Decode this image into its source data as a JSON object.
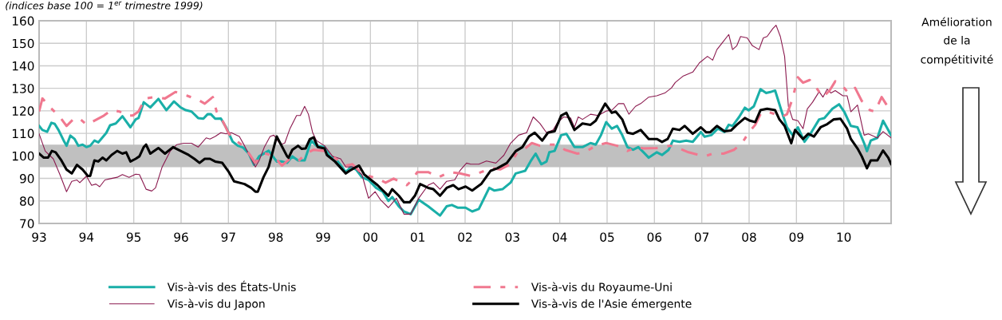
{
  "chart_data": {
    "type": "line",
    "subtitle": "(indices base 100 = 1$^{er}$ trimestre 1999)",
    "annotations": [
      "Amélioration\nde la\ncompétitivité"
    ],
    "xlim": [
      1993,
      2011
    ],
    "xticks": [
      {
        "value": 1993,
        "label": "93"
      },
      {
        "value": 1994,
        "label": "94"
      },
      {
        "value": 1995,
        "label": "95"
      },
      {
        "value": 1996,
        "label": "96"
      },
      {
        "value": 1997,
        "label": "97"
      },
      {
        "value": 1998,
        "label": "98"
      },
      {
        "value": 1999,
        "label": "99"
      },
      {
        "value": 2000,
        "label": "00"
      },
      {
        "value": 2001,
        "label": "01"
      },
      {
        "value": 2002,
        "label": "02"
      },
      {
        "value": 2003,
        "label": "03"
      },
      {
        "value": 2004,
        "label": "04"
      },
      {
        "value": 2005,
        "label": "05"
      },
      {
        "value": 2006,
        "label": "06"
      },
      {
        "value": 2007,
        "label": "07"
      },
      {
        "value": 2008,
        "label": "08"
      },
      {
        "value": 2009,
        "label": "09"
      },
      {
        "value": 2010,
        "label": "10"
      },
      {
        "value": 2011,
        "label": null
      }
    ],
    "ylim": [
      70,
      160
    ],
    "yticks": [
      70,
      80,
      90,
      100,
      110,
      120,
      130,
      140,
      150,
      160
    ],
    "grid": true,
    "legend": "bottom",
    "bands": [
      {
        "axis": "y",
        "from": 95,
        "to": 105,
        "color": "#c0c0c0"
      }
    ],
    "series": [
      {
        "name": "Vis-à-vis des États-Unis",
        "color": "#1aafa8",
        "line_style": "solid",
        "x": [
          1993.0,
          1993.07,
          1993.17,
          1993.26,
          1993.33,
          1993.41,
          1993.52,
          1993.58,
          1993.66,
          1993.75,
          1993.83,
          1993.92,
          1994.0,
          1994.08,
          1994.17,
          1994.25,
          1994.42,
          1994.5,
          1994.62,
          1994.76,
          1994.93,
          1995.04,
          1995.1,
          1995.21,
          1995.35,
          1995.52,
          1995.69,
          1995.85,
          1995.99,
          1996.1,
          1996.22,
          1996.36,
          1996.47,
          1996.56,
          1996.63,
          1996.72,
          1996.84,
          1996.95,
          1997.09,
          1997.2,
          1997.31,
          1997.43,
          1997.54,
          1997.65,
          1997.85,
          1998.02,
          1998.13,
          1998.24,
          1998.35,
          1998.47,
          1998.61,
          1998.75,
          1998.86,
          1999.03,
          1999.14,
          1999.31,
          1999.48,
          1999.59,
          1999.7,
          1999.82,
          1999.96,
          2000.12,
          2000.26,
          2000.38,
          2000.46,
          2000.6,
          2000.71,
          2000.85,
          2001.02,
          2001.22,
          2001.47,
          2001.61,
          2001.72,
          2001.84,
          2002.01,
          2002.15,
          2002.29,
          2002.51,
          2002.62,
          2002.79,
          2002.96,
          2003.07,
          2003.27,
          2003.38,
          2003.49,
          2003.61,
          2003.72,
          2003.78,
          2003.89,
          2004.03,
          2004.14,
          2004.31,
          2004.48,
          2004.65,
          2004.76,
          2004.87,
          2004.98,
          2005.1,
          2005.21,
          2005.32,
          2005.43,
          2005.55,
          2005.66,
          2005.77,
          2005.88,
          2006.05,
          2006.16,
          2006.3,
          2006.39,
          2006.53,
          2006.67,
          2006.81,
          2006.98,
          2007.06,
          2007.2,
          2007.34,
          2007.48,
          2007.57,
          2007.65,
          2007.79,
          2007.91,
          2007.99,
          2008.1,
          2008.24,
          2008.36,
          2008.47,
          2008.55,
          2008.69,
          2008.8,
          2008.92,
          2009.03,
          2009.17,
          2009.31,
          2009.48,
          2009.59,
          2009.76,
          2009.9,
          2010.01,
          2010.15,
          2010.29,
          2010.43,
          2010.49,
          2010.57,
          2010.71,
          2010.83,
          2011.0
        ],
        "values": [
          113.3,
          111.5,
          110.7,
          114.7,
          114.2,
          111.5,
          106.8,
          104.5,
          109,
          107.5,
          104.5,
          105,
          103.9,
          104.5,
          106.8,
          106,
          110.2,
          113.6,
          114.4,
          117.6,
          112.7,
          116.2,
          116.8,
          123.8,
          121.5,
          125.3,
          120.3,
          124.2,
          121.5,
          120.3,
          119.7,
          116.8,
          116.5,
          118.5,
          118.5,
          116.5,
          116.6,
          112.7,
          106.3,
          104.5,
          103.7,
          101,
          96.1,
          99.8,
          102.3,
          97.5,
          97.5,
          96.9,
          99.8,
          98,
          98,
          106.8,
          104.5,
          103.9,
          99.8,
          97.5,
          92.8,
          95.1,
          93.9,
          90.5,
          89.3,
          85.8,
          84.1,
          80,
          81.7,
          77.6,
          75.3,
          74.1,
          80.5,
          77.6,
          73.5,
          77.6,
          78.2,
          77,
          77,
          75.3,
          76.4,
          85.8,
          84.6,
          85.2,
          88.1,
          92.2,
          93.4,
          97.5,
          101,
          96.3,
          97.5,
          101.6,
          102.2,
          109.2,
          109.8,
          103.9,
          103.9,
          105.7,
          105,
          109.2,
          115,
          112.1,
          113.3,
          109.2,
          103.9,
          102.7,
          103.9,
          101.6,
          99.2,
          101.6,
          100.4,
          102.7,
          106.8,
          106.2,
          106.8,
          106.2,
          110.6,
          108.5,
          109.2,
          112.1,
          110.6,
          113.8,
          113.3,
          117.3,
          121.4,
          120.2,
          122,
          129.6,
          127.9,
          128.5,
          129,
          119.6,
          112.7,
          109.2,
          112.7,
          106.3,
          110.3,
          116.2,
          116.8,
          120.9,
          122.9,
          119.6,
          113.3,
          112.7,
          105.6,
          102.1,
          106.8,
          108,
          115.6,
          109.2
        ]
      },
      {
        "name": "Vis-à-vis du Japon",
        "color": "#8b1a4f",
        "line_style": "solid",
        "x": [
          1993.0,
          1993.13,
          1993.3,
          1993.44,
          1993.58,
          1993.69,
          1993.8,
          1993.86,
          1994.0,
          1994.11,
          1994.2,
          1994.28,
          1994.39,
          1994.51,
          1994.65,
          1994.76,
          1994.9,
          1995.04,
          1995.12,
          1995.26,
          1995.38,
          1995.46,
          1995.6,
          1995.77,
          1995.91,
          1996.05,
          1996.22,
          1996.36,
          1996.53,
          1996.61,
          1996.72,
          1996.84,
          1996.95,
          1997.06,
          1997.23,
          1997.34,
          1997.48,
          1997.57,
          1997.65,
          1997.76,
          1997.88,
          1997.96,
          1998.1,
          1998.19,
          1998.3,
          1998.44,
          1998.52,
          1998.61,
          1998.69,
          1998.78,
          1998.86,
          1999.03,
          1999.2,
          1999.37,
          1999.48,
          1999.65,
          1999.82,
          1999.96,
          2000.1,
          2000.21,
          2000.38,
          2000.55,
          2000.71,
          2000.85,
          2001.02,
          2001.22,
          2001.33,
          2001.47,
          2001.61,
          2001.78,
          2001.89,
          2002.03,
          2002.12,
          2002.29,
          2002.45,
          2002.65,
          2002.82,
          2002.96,
          2003.13,
          2003.3,
          2003.44,
          2003.58,
          2003.72,
          2003.86,
          2003.94,
          2004.08,
          2004.23,
          2004.31,
          2004.39,
          2004.48,
          2004.65,
          2004.81,
          2004.98,
          2005.1,
          2005.24,
          2005.35,
          2005.46,
          2005.6,
          2005.71,
          2005.88,
          2006.05,
          2006.22,
          2006.36,
          2006.44,
          2006.61,
          2006.81,
          2006.95,
          2007.12,
          2007.23,
          2007.32,
          2007.43,
          2007.57,
          2007.65,
          2007.74,
          2007.82,
          2007.96,
          2008.07,
          2008.21,
          2008.3,
          2008.38,
          2008.5,
          2008.57,
          2008.66,
          2008.75,
          2008.83,
          2008.92,
          2009.03,
          2009.14,
          2009.23,
          2009.34,
          2009.48,
          2009.56,
          2009.65,
          2009.73,
          2009.82,
          2009.98,
          2010.07,
          2010.15,
          2010.29,
          2010.43,
          2010.52,
          2010.71,
          2010.83,
          2011.0
        ],
        "values": [
          109.8,
          102.1,
          98.7,
          91.7,
          84.1,
          88.7,
          89.3,
          88.1,
          91,
          86.9,
          87.5,
          86.3,
          89.3,
          89.9,
          90.5,
          91.7,
          90.5,
          91.9,
          91.7,
          85.2,
          84.4,
          85.8,
          95.1,
          102.1,
          105,
          105.6,
          105.6,
          103.9,
          108,
          107.5,
          108.6,
          110.3,
          109.8,
          110.3,
          108.6,
          104.5,
          98.7,
          95.1,
          98,
          103.9,
          108.6,
          109.2,
          105,
          105.7,
          112.1,
          117.9,
          117.9,
          122,
          118.5,
          110.3,
          106.8,
          104.5,
          99.8,
          98.7,
          95.1,
          95.1,
          91.7,
          81.2,
          84.1,
          80.6,
          77,
          81.2,
          74.1,
          74.1,
          81.2,
          87,
          88.1,
          85.2,
          88.7,
          89.3,
          93.4,
          96.8,
          96.3,
          96.3,
          97.7,
          96.8,
          100.3,
          105.6,
          109.2,
          110.3,
          117.3,
          114.4,
          110.3,
          111.5,
          114.4,
          117.3,
          116.8,
          112.7,
          117.3,
          116.2,
          118.5,
          117.9,
          119.9,
          120.3,
          123.2,
          123.2,
          118.5,
          122,
          123.2,
          126.1,
          126.7,
          127.9,
          130.2,
          132.6,
          135.5,
          137.2,
          141.3,
          144.2,
          142.5,
          147.2,
          150.1,
          153.9,
          147.2,
          148.9,
          153,
          152.4,
          148.9,
          147.2,
          152.4,
          153,
          156.5,
          158,
          153,
          144.2,
          122,
          116.2,
          115.6,
          112.1,
          120.9,
          123.8,
          128.5,
          126.1,
          129.6,
          127.9,
          129,
          126.7,
          126.7,
          119.6,
          122.6,
          109.2,
          109.8,
          108,
          110.8,
          108
        ]
      },
      {
        "name": "Vis-à-vis du Royaume-Uni",
        "color": "#f0788f",
        "line_style": "dashed",
        "x": [
          1993.0,
          1993.07,
          1993.24,
          1993.44,
          1993.58,
          1993.75,
          1993.86,
          1994.0,
          1994.11,
          1994.37,
          1994.53,
          1994.7,
          1994.84,
          1994.98,
          1995.1,
          1995.24,
          1995.43,
          1995.66,
          1995.88,
          1996.13,
          1996.36,
          1996.5,
          1996.67,
          1996.75,
          1996.89,
          1997.01,
          1997.12,
          1997.34,
          1997.57,
          1997.69,
          1997.79,
          1997.96,
          1998.13,
          1998.3,
          1998.47,
          1998.63,
          1998.8,
          1999.03,
          1999.14,
          1999.31,
          1999.48,
          1999.62,
          1999.82,
          1999.96,
          2000.15,
          2000.32,
          2000.49,
          2000.77,
          2000.88,
          2000.99,
          2001.22,
          2001.44,
          2001.67,
          2001.89,
          2002.12,
          2002.34,
          2002.57,
          2002.74,
          2002.96,
          2003.1,
          2003.27,
          2003.41,
          2003.58,
          2003.75,
          2003.92,
          2004.11,
          2004.37,
          2004.53,
          2004.76,
          2004.98,
          2005.21,
          2005.43,
          2005.63,
          2005.77,
          2006.05,
          2006.33,
          2006.5,
          2006.72,
          2007.06,
          2007.23,
          2007.46,
          2007.68,
          2007.85,
          2007.99,
          2008.13,
          2008.24,
          2008.38,
          2008.55,
          2008.69,
          2008.8,
          2008.92,
          2009.03,
          2009.14,
          2009.28,
          2009.42,
          2009.56,
          2009.7,
          2009.82,
          2009.96,
          2010.1,
          2010.24,
          2010.38,
          2010.55,
          2010.66,
          2010.8,
          2010.94,
          2011.0
        ],
        "values": [
          119.7,
          125.5,
          121.4,
          117.3,
          113.3,
          116.8,
          116.5,
          113.9,
          115,
          117.9,
          120.3,
          119.7,
          117.9,
          117.9,
          119.7,
          125.5,
          126.1,
          125.5,
          128.4,
          126.7,
          124.9,
          123.2,
          126.1,
          119.7,
          115,
          109.8,
          107.5,
          103.9,
          96.9,
          100.4,
          101,
          99.8,
          95.7,
          98.7,
          97.5,
          101,
          102.7,
          102.2,
          101,
          98,
          95.7,
          96.3,
          92.2,
          91.1,
          89.9,
          88.1,
          89.9,
          87,
          89.3,
          92.8,
          92.8,
          90.5,
          92.8,
          92.2,
          91.1,
          92.8,
          94.5,
          94,
          96.3,
          101.5,
          103.3,
          105.7,
          104.5,
          105,
          105,
          102.7,
          101,
          101.6,
          104.5,
          105.7,
          104.5,
          102.2,
          103.9,
          103.3,
          103.5,
          104.5,
          103.5,
          101.6,
          99.8,
          101,
          101,
          102.7,
          105.6,
          110.3,
          113.8,
          118.5,
          119.7,
          118.5,
          117.3,
          118.5,
          125.5,
          134.9,
          132.5,
          133.7,
          130.2,
          126.1,
          129,
          133.1,
          131.4,
          127.9,
          130.2,
          124.4,
          120.3,
          119.7,
          126.1,
          121.5,
          121.5
        ]
      },
      {
        "name": "Vis-à-vis de l'Asie émergente",
        "color": "#000000",
        "line_style": "solid",
        "x": [
          1993.0,
          1993.1,
          1993.19,
          1993.27,
          1993.35,
          1993.47,
          1993.58,
          1993.69,
          1993.8,
          1993.92,
          1994.03,
          1994.08,
          1994.17,
          1994.25,
          1994.34,
          1994.42,
          1994.53,
          1994.65,
          1994.76,
          1994.84,
          1994.93,
          1995.04,
          1995.12,
          1995.21,
          1995.26,
          1995.35,
          1995.52,
          1995.66,
          1995.83,
          1995.99,
          1996.16,
          1996.28,
          1996.39,
          1996.5,
          1996.61,
          1996.72,
          1996.87,
          1997.01,
          1997.12,
          1997.34,
          1997.48,
          1997.57,
          1997.62,
          1997.74,
          1997.85,
          1998.02,
          1998.24,
          1998.27,
          1998.35,
          1998.47,
          1998.55,
          1998.63,
          1998.72,
          1998.8,
          1998.89,
          1999.03,
          1999.08,
          1999.25,
          1999.48,
          1999.56,
          1999.65,
          1999.76,
          1999.87,
          1999.98,
          2000.15,
          2000.38,
          2000.46,
          2000.6,
          2000.71,
          2000.83,
          2000.94,
          2001.05,
          2001.22,
          2001.33,
          2001.47,
          2001.61,
          2001.75,
          2001.86,
          2002.01,
          2002.15,
          2002.34,
          2002.54,
          2002.68,
          2002.88,
          2003.07,
          2003.21,
          2003.35,
          2003.47,
          2003.63,
          2003.75,
          2003.89,
          2004.03,
          2004.14,
          2004.31,
          2004.48,
          2004.65,
          2004.76,
          2004.96,
          2005.1,
          2005.18,
          2005.32,
          2005.43,
          2005.55,
          2005.71,
          2005.88,
          2006.05,
          2006.16,
          2006.28,
          2006.39,
          2006.53,
          2006.64,
          2006.81,
          2006.98,
          2007.09,
          2007.18,
          2007.32,
          2007.48,
          2007.62,
          2007.74,
          2007.91,
          2008.02,
          2008.13,
          2008.24,
          2008.38,
          2008.55,
          2008.64,
          2008.75,
          2008.89,
          2008.97,
          2009.14,
          2009.25,
          2009.37,
          2009.51,
          2009.65,
          2009.79,
          2009.93,
          2010.07,
          2010.15,
          2010.29,
          2010.38,
          2010.49,
          2010.57,
          2010.71,
          2010.83,
          2010.94,
          2011.0
        ],
        "values": [
          101,
          99.2,
          99.2,
          102.2,
          101.6,
          98,
          93.9,
          92.2,
          96,
          93.9,
          91.1,
          91.1,
          98,
          97.5,
          99.2,
          98,
          100.4,
          102.2,
          101,
          101.6,
          97.5,
          98.7,
          99.8,
          103.9,
          105,
          101,
          103.5,
          101,
          103.9,
          102.2,
          100.4,
          98.7,
          96.9,
          98.7,
          98.7,
          97.5,
          96.9,
          92.8,
          88.7,
          87.5,
          85.8,
          84.1,
          84.1,
          90.5,
          95.1,
          108.6,
          99.8,
          99.2,
          102.7,
          104.5,
          103.1,
          103.3,
          107.4,
          108.2,
          103.9,
          103.3,
          100.4,
          97.5,
          92.2,
          93.4,
          94.5,
          95.7,
          91.7,
          89.9,
          87,
          82.3,
          85.2,
          82.3,
          79.4,
          79.4,
          82.3,
          87.5,
          85.8,
          85.2,
          82.3,
          85.8,
          87,
          85.2,
          86.4,
          84.6,
          87.5,
          93.4,
          94.5,
          96.8,
          102.1,
          103.9,
          108.6,
          110.3,
          106.8,
          110.3,
          110.9,
          117.9,
          119.1,
          111.5,
          114.4,
          113.8,
          115.6,
          123.2,
          119.1,
          119.7,
          116.2,
          110.3,
          109.8,
          111.5,
          107.5,
          107.5,
          106.2,
          107.5,
          112.1,
          111.5,
          113.3,
          109.8,
          112.7,
          110.5,
          110.5,
          113.3,
          110.9,
          111.3,
          113.8,
          116.8,
          115.6,
          115,
          120.3,
          120.9,
          120.3,
          116.2,
          113.3,
          105.6,
          111.5,
          107.5,
          109.8,
          108.6,
          112.7,
          114.1,
          116.2,
          116.5,
          112.1,
          107.5,
          103.3,
          99.8,
          94.5,
          98,
          98,
          102.4,
          99.2,
          96.4
        ]
      }
    ]
  }
}
